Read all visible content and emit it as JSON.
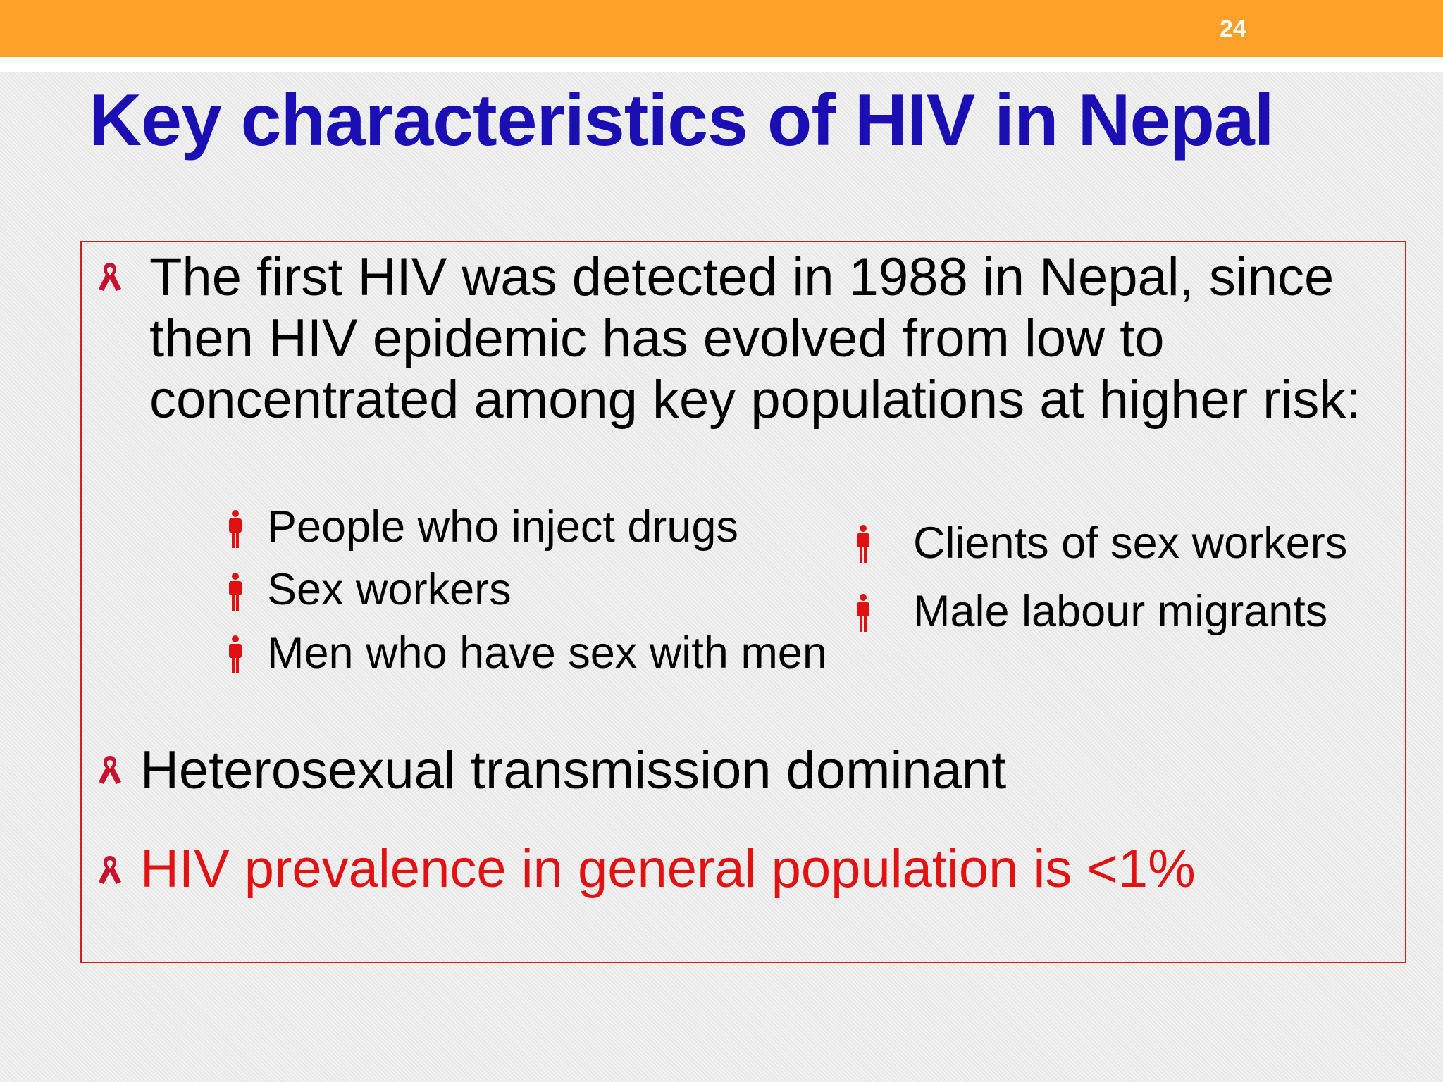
{
  "header": {
    "page_number": "24"
  },
  "title": "Key characteristics of HIV in Nepal",
  "box": {
    "bullets": [
      {
        "text": "The first HIV was detected in 1988 in Nepal, since then HIV epidemic has evolved from low to concentrated among key populations at higher risk:"
      },
      {
        "text": "Heterosexual transmission dominant"
      },
      {
        "text": "HIV prevalence in general population is <1%"
      }
    ],
    "sub_items_left": [
      "People who inject drugs",
      "Sex workers",
      "Men who have sex with men"
    ],
    "sub_items_right": [
      "Clients of sex workers",
      "Male labour migrants"
    ]
  }
}
